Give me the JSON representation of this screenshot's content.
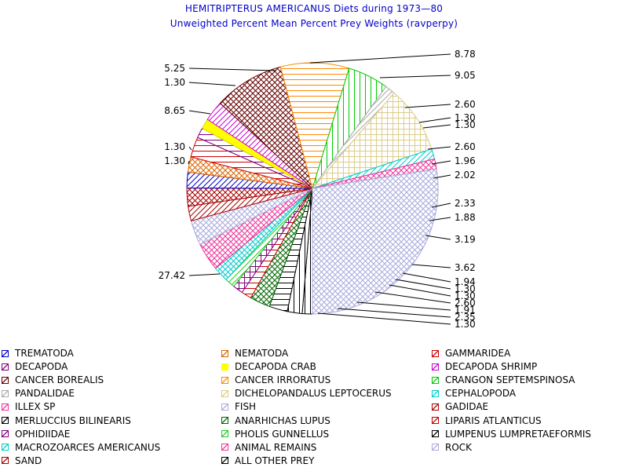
{
  "chart_data": {
    "type": "pie",
    "title": "HEMITRIPTERUS AMERICANUS Diets during 1973—80",
    "subtitle": "Unweighted Percent Mean Percent Prey  Weights (ravperpy)",
    "slices": [
      {
        "name": "ALL OTHER PREY",
        "value": 1.3,
        "color": "#000000",
        "pattern": "vert"
      },
      {
        "name": "LUMPENUS LUMPRETAEFORMIS",
        "value": 1.91,
        "color": "#000000",
        "pattern": "vert"
      },
      {
        "name": "MERLUCCIUS BILINEARIS",
        "value": 2.35,
        "color": "#000000",
        "pattern": "horiz"
      },
      {
        "name": "ANARHICHAS LUPUS",
        "value": 2.6,
        "color": "#006600",
        "pattern": "crossdiag"
      },
      {
        "name": "LIPARIS ATLANTICUS",
        "value": 1.3,
        "color": "#cc0000",
        "pattern": "horiz"
      },
      {
        "name": "OPHIDIIDAE",
        "value": 1.3,
        "color": "#800080",
        "pattern": "grid"
      },
      {
        "name": "PHOLIS GUNNELLUS",
        "value": 1.3,
        "color": "#22cc22",
        "pattern": "diag"
      },
      {
        "name": "MACROZOARCES AMERICANUS",
        "value": 1.94,
        "color": "#00cccc",
        "pattern": "crossdiag"
      },
      {
        "name": "ANIMAL REMAINS",
        "value": 3.62,
        "color": "#ee3399",
        "pattern": "crossdiag"
      },
      {
        "name": "ROCK",
        "value": 3.19,
        "color": "#aaaadd",
        "pattern": "crossdiag"
      },
      {
        "name": "GADIDAE",
        "value": 1.88,
        "color": "#aa0000",
        "pattern": "diag"
      },
      {
        "name": "SAND",
        "value": 2.33,
        "color": "#aa0000",
        "pattern": "crossdiag"
      },
      {
        "name": "TREMATODA",
        "value": 2.02,
        "color": "#0000cc",
        "pattern": "diag"
      },
      {
        "name": "NEMATODA",
        "value": 1.96,
        "color": "#dd6600",
        "pattern": "crossdiag"
      },
      {
        "name": "GAMMARIDEA",
        "value": 2.6,
        "color": "#cc0000",
        "pattern": "horiz"
      },
      {
        "name": "DECAPODA",
        "value": 1.3,
        "color": "#800080",
        "pattern": "horiz"
      },
      {
        "name": "DECAPODA CRAB",
        "value": 1.3,
        "color": "#ffff00",
        "pattern": "solid"
      },
      {
        "name": "DECAPODA SHRIMP",
        "value": 2.6,
        "color": "#cc00cc",
        "pattern": "diag"
      },
      {
        "name": "CANCER BOREALIS",
        "value": 9.05,
        "color": "#660000",
        "pattern": "crossdiag"
      },
      {
        "name": "CANCER IRRORATUS",
        "value": 8.78,
        "color": "#ff8800",
        "pattern": "horiz"
      },
      {
        "name": "CRANGON SEPTEMSPINOSA",
        "value": 5.25,
        "color": "#00cc00",
        "pattern": "vert"
      },
      {
        "name": "PANDALIDAE",
        "value": 1.3,
        "color": "#aaaaaa",
        "pattern": "diag"
      },
      {
        "name": "DICHELOPANDALUS LEPTOCERUS",
        "value": 8.65,
        "color": "#ddcc88",
        "pattern": "grid"
      },
      {
        "name": "CEPHALOPODA",
        "value": 1.3,
        "color": "#00cccc",
        "pattern": "diag"
      },
      {
        "name": "ILLEX SP",
        "value": 1.3,
        "color": "#ee3399",
        "pattern": "crossdiag"
      },
      {
        "name": "FISH",
        "value": 27.42,
        "color": "#aaaadd",
        "pattern": "crossdiag"
      }
    ],
    "labels": [
      "8.78",
      "9.05",
      "2.60",
      "1.30",
      "1.30",
      "2.60",
      "1.96",
      "2.02",
      "2.33",
      "1.88",
      "3.19",
      "3.62",
      "1.94",
      "1.30",
      "1.30",
      "2.60",
      "1.91",
      "2.35",
      "1.30",
      "5.25",
      "1.30",
      "8.65",
      "1.30",
      "1.30",
      "27.42"
    ],
    "legend_placement": "bottom"
  },
  "legend": [
    {
      "label": "TREMATODA",
      "color": "#0000cc"
    },
    {
      "label": "NEMATODA",
      "color": "#dd6600"
    },
    {
      "label": "GAMMARIDEA",
      "color": "#cc0000"
    },
    {
      "label": "DECAPODA",
      "color": "#800080"
    },
    {
      "label": "DECAPODA CRAB",
      "color": "#ffff00"
    },
    {
      "label": "DECAPODA SHRIMP",
      "color": "#cc00cc"
    },
    {
      "label": "CANCER BOREALIS",
      "color": "#660000"
    },
    {
      "label": "CANCER IRRORATUS",
      "color": "#ff8800"
    },
    {
      "label": "CRANGON SEPTEMSPINOSA",
      "color": "#00cc00"
    },
    {
      "label": "PANDALIDAE",
      "color": "#aaaaaa"
    },
    {
      "label": "DICHELOPANDALUS LEPTOCERUS",
      "color": "#ddcc88"
    },
    {
      "label": "CEPHALOPODA",
      "color": "#00cccc"
    },
    {
      "label": "ILLEX SP",
      "color": "#ee3399"
    },
    {
      "label": "FISH",
      "color": "#aaaadd"
    },
    {
      "label": "GADIDAE",
      "color": "#aa0000"
    },
    {
      "label": "MERLUCCIUS BILINEARIS",
      "color": "#000000"
    },
    {
      "label": "ANARHICHAS LUPUS",
      "color": "#006600"
    },
    {
      "label": "LIPARIS ATLANTICUS",
      "color": "#cc0000"
    },
    {
      "label": "OPHIDIIDAE",
      "color": "#800080"
    },
    {
      "label": "PHOLIS GUNNELLUS",
      "color": "#22cc22"
    },
    {
      "label": "LUMPENUS LUMPRETAEFORMIS",
      "color": "#000000"
    },
    {
      "label": "MACROZOARCES AMERICANUS",
      "color": "#00cccc"
    },
    {
      "label": "ANIMAL REMAINS",
      "color": "#ee3399"
    },
    {
      "label": "ROCK",
      "color": "#aaaadd"
    },
    {
      "label": "SAND",
      "color": "#aa0000"
    },
    {
      "label": "ALL OTHER PREY",
      "color": "#000000"
    }
  ]
}
